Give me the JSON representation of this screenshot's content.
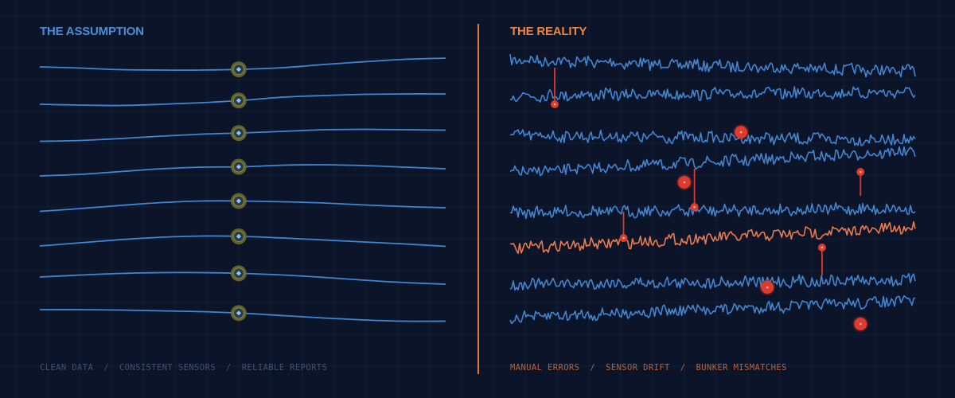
{
  "colors": {
    "background": "#0b1428",
    "grid": "#13203a",
    "clean_line": "#3f86d4",
    "node_ring": "#6b6a2e",
    "node_core": "#8ec5f0",
    "noise_line": "#3f86d4",
    "highlight_line": "#ef7a4b",
    "anomaly": "#e03a2c",
    "accent": "#e07a35"
  },
  "chart_data": [
    {
      "type": "line",
      "panel": "left",
      "title": "THE ASSUMPTION",
      "footer": [
        "CLEAN DATA",
        "CONSISTENT SENSORS",
        "RELIABLE REPORTS"
      ],
      "x": [
        0,
        10,
        20,
        30,
        40,
        50,
        60,
        70,
        80,
        90,
        100
      ],
      "series": [
        {
          "values": [
            84.0,
            85.5,
            87.5,
            88.0,
            88.0,
            87.0,
            85.0,
            81.0,
            77.5,
            74.5,
            73.0
          ],
          "marker_x": 49
        },
        {
          "values": [
            131.0,
            132.0,
            132.5,
            131.0,
            129.0,
            126.0,
            122.0,
            120.0,
            118.5,
            118.0,
            118.0
          ],
          "marker_x": 49
        },
        {
          "values": [
            177.5,
            176.5,
            174.0,
            171.0,
            168.5,
            167.0,
            165.0,
            163.0,
            162.5,
            163.0,
            163.5
          ],
          "marker_x": 49
        },
        {
          "values": [
            221.0,
            219.0,
            215.5,
            212.0,
            210.0,
            209.5,
            207.5,
            207.0,
            208.0,
            210.0,
            212.0
          ],
          "marker_x": 49
        },
        {
          "values": [
            265.5,
            262.0,
            258.0,
            254.5,
            252.5,
            252.5,
            253.5,
            255.0,
            257.5,
            259.5,
            261.0
          ],
          "marker_x": 49
        },
        {
          "values": [
            309.0,
            305.0,
            301.0,
            298.0,
            296.5,
            297.0,
            299.0,
            301.5,
            304.0,
            306.5,
            309.5
          ],
          "marker_x": 49
        },
        {
          "values": [
            348.0,
            345.5,
            343.5,
            342.5,
            342.5,
            343.5,
            345.5,
            348.5,
            352.0,
            355.0,
            357.0
          ],
          "marker_x": 49
        },
        {
          "values": [
            389.0,
            389.0,
            389.5,
            390.5,
            391.5,
            393.5,
            396.5,
            399.5,
            402.0,
            403.5,
            403.5
          ],
          "marker_x": 49
        }
      ]
    },
    {
      "type": "line",
      "panel": "right",
      "title": "THE REALITY",
      "footer": [
        "MANUAL ERRORS",
        "SENSOR DRIFT",
        "BUNKER MISMATCHES"
      ],
      "noise_amplitude": 7,
      "series": [
        {
          "start": 75,
          "end": 90,
          "highlight": false
        },
        {
          "start": 120,
          "end": 116,
          "highlight": false
        },
        {
          "start": 170,
          "end": 176,
          "highlight": false
        },
        {
          "start": 217,
          "end": 190,
          "highlight": false
        },
        {
          "start": 267,
          "end": 262,
          "highlight": false
        },
        {
          "start": 312,
          "end": 286,
          "highlight": true
        },
        {
          "start": 357,
          "end": 352,
          "highlight": false
        },
        {
          "start": 399,
          "end": 378,
          "highlight": false
        }
      ],
      "anomalies": [
        {
          "x": 11,
          "y": 131,
          "r": 5,
          "stem_to": 85
        },
        {
          "x": 57,
          "y": 166,
          "r": 8
        },
        {
          "x": 43,
          "y": 229,
          "r": 8
        },
        {
          "x": 45.5,
          "y": 260,
          "r": 5,
          "stem_to": 212
        },
        {
          "x": 86.5,
          "y": 216,
          "r": 5,
          "stem_to": 246
        },
        {
          "x": 28,
          "y": 299,
          "r": 5,
          "stem_to": 266
        },
        {
          "x": 77,
          "y": 311,
          "r": 5,
          "stem_to": 346
        },
        {
          "x": 63.5,
          "y": 361,
          "r": 8
        },
        {
          "x": 86.5,
          "y": 407,
          "r": 8
        }
      ]
    }
  ]
}
